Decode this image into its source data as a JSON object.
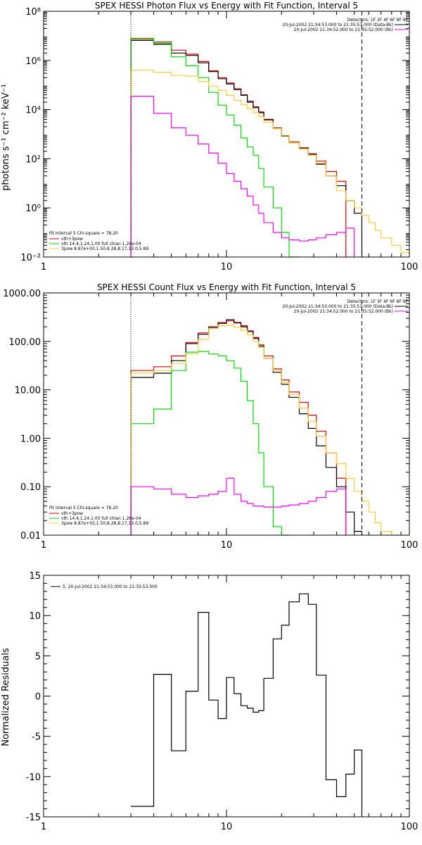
{
  "chart_data": [
    {
      "type": "line",
      "step": true,
      "title": "SPEX HESSI Photon Flux vs Energy with Fit Function, Interval 5",
      "xlabel": "",
      "ylabel": "photons s⁻¹ cm⁻² keV⁻¹",
      "xscale": "log",
      "yscale": "log",
      "xlim": [
        1,
        100
      ],
      "ylim": [
        0.01,
        100000000
      ],
      "x_ticks": [
        1,
        10,
        100
      ],
      "x_tick_labels": [
        "1",
        "10",
        "100"
      ],
      "y_ticks": [
        0.01,
        1,
        100,
        10000,
        1000000,
        100000000
      ],
      "y_tick_labels": [
        "10⁻²",
        "10⁰",
        "10²",
        "10⁴",
        "10⁶",
        "10⁸"
      ],
      "bin_edges": [
        3,
        4,
        5,
        6,
        7,
        8,
        9,
        10,
        11,
        12,
        13,
        14,
        15,
        16,
        18,
        20,
        22,
        25,
        28,
        31,
        35,
        40,
        45,
        50,
        55,
        60,
        65,
        70,
        80,
        90,
        100
      ],
      "series": [
        {
          "name": "vth+3pow",
          "color": "#e00000",
          "values": [
            7500000,
            5600000,
            2600000,
            1800000,
            900000,
            380000,
            200000,
            120000,
            70000,
            40000,
            22000,
            13000,
            8000,
            4000,
            1800,
            900,
            480,
            280,
            160,
            80,
            30,
            12,
            null,
            null,
            null,
            null,
            null,
            null,
            null,
            null
          ]
        },
        {
          "name": "data",
          "color": "#000000",
          "values": [
            6500000,
            4500000,
            2000000,
            1600000,
            800000,
            350000,
            180000,
            110000,
            65000,
            38000,
            20000,
            12000,
            7500,
            3800,
            1700,
            850,
            450,
            260,
            150,
            60,
            20,
            8,
            2,
            0.6,
            null,
            null,
            null,
            null,
            null,
            null
          ]
        },
        {
          "name": "vth 14.4,1.24,1.00  full chian 1.26e-04",
          "color": "#00dd00",
          "values": [
            8000000,
            5000000,
            1400000,
            600000,
            200000,
            50000,
            15000,
            6000,
            2300,
            700,
            300,
            140,
            40,
            7,
            1,
            0.1,
            0.01,
            null,
            null,
            null,
            null,
            null,
            null,
            null,
            null,
            null,
            null,
            null,
            null,
            null
          ]
        },
        {
          "name": "3pow  8.87e+03,1.50,8.28,8.17,13.0,5.89",
          "color": "#ffcc33",
          "values": [
            400000,
            330000,
            250000,
            230000,
            140000,
            90000,
            60000,
            38000,
            24000,
            16000,
            11000,
            7500,
            5200,
            3000,
            1700,
            900,
            450,
            250,
            140,
            65,
            20,
            5,
            2,
            1,
            0.5,
            0.25,
            0.12,
            0.06,
            0.03,
            0.015
          ]
        },
        {
          "name": "pink",
          "color": "#ff00ff",
          "values": [
            35000,
            7000,
            1800,
            900,
            400,
            170,
            65,
            25,
            12,
            6,
            3,
            1.3,
            0.6,
            0.25,
            0.1,
            0.06,
            0.05,
            0.045,
            0.05,
            0.06,
            0.08,
            0.1,
            0.15,
            null,
            null,
            null,
            null,
            null,
            null,
            null
          ]
        }
      ],
      "vlines": [
        {
          "x": 3,
          "style": "dotted"
        },
        {
          "x": 55,
          "style": "dashed"
        }
      ],
      "legend": {
        "title": "Detectors: 1F 3F 4F 6F 8F 9F",
        "entries": [
          {
            "text": "20-Jul-2002 21:34:53.000 to 21:35:53.000 (Data-Bk)",
            "color": "#000000"
          },
          {
            "text": "20-Jul-2002 21:34:52.000 to 21:35:52.000 (Bk)",
            "color": "#ff00ff"
          }
        ]
      },
      "fit_legend": {
        "title": "Fit Interval 5    Chi-square = 78.20",
        "entries": [
          {
            "text": "vth+3pow",
            "color": "#e00000"
          },
          {
            "text": "vth 14.4,1.24,1.00  full chian 1.26e-04",
            "color": "#00dd00"
          },
          {
            "text": "3pow  8.87e+03,1.50,8.28,8.17,13.0,5.89",
            "color": "#ffcc33"
          }
        ]
      }
    },
    {
      "type": "line",
      "step": true,
      "title": "SPEX HESSI Count Flux vs Energy with Fit Function, Interval 5",
      "xlabel": "",
      "ylabel": "",
      "xscale": "log",
      "yscale": "log",
      "xlim": [
        1,
        100
      ],
      "ylim": [
        0.01,
        1000
      ],
      "x_ticks": [
        1,
        10,
        100
      ],
      "x_tick_labels": [
        "1",
        "10",
        "100"
      ],
      "y_ticks": [
        0.01,
        0.1,
        1,
        10,
        100,
        1000
      ],
      "y_tick_labels": [
        "0.01",
        "0.10",
        "1.00",
        "10.00",
        "100.00",
        "1000.00"
      ],
      "bin_edges": [
        3,
        4,
        5,
        6,
        7,
        8,
        9,
        10,
        11,
        12,
        13,
        14,
        15,
        16,
        18,
        20,
        22,
        25,
        28,
        31,
        35,
        40,
        45,
        50,
        55,
        60,
        65,
        70,
        80,
        90,
        100
      ],
      "series": [
        {
          "name": "vth+3pow",
          "color": "#e00000",
          "values": [
            25,
            30,
            50,
            95,
            150,
            200,
            245,
            265,
            240,
            210,
            165,
            120,
            85,
            50,
            27,
            16,
            9,
            5.5,
            3.0,
            1.4,
            0.5,
            0.15,
            null,
            null,
            null,
            null,
            null,
            null,
            null,
            null
          ]
        },
        {
          "name": "data",
          "color": "#000000",
          "values": [
            18,
            22,
            40,
            90,
            140,
            195,
            235,
            280,
            245,
            200,
            160,
            115,
            80,
            45,
            23,
            13,
            7,
            3.2,
            1.6,
            0.7,
            0.25,
            0.1,
            0.03,
            0.012,
            null,
            null,
            null,
            null,
            null,
            null
          ]
        },
        {
          "name": "vth 14.4,1.24,1.00  full chian 1.26e-04",
          "color": "#00dd00",
          "values": [
            2.0,
            4.0,
            25,
            60,
            62,
            55,
            50,
            40,
            28,
            15,
            6,
            2.0,
            0.5,
            0.1,
            0.015,
            0.005,
            null,
            null,
            null,
            null,
            null,
            null,
            null,
            null,
            null,
            null,
            null,
            null,
            null,
            null
          ]
        },
        {
          "name": "3pow  8.87e+03,1.50,8.28,8.17,13.0,5.89",
          "color": "#ffcc33",
          "values": [
            22,
            25,
            35,
            55,
            110,
            185,
            210,
            215,
            195,
            170,
            135,
            100,
            75,
            45,
            25,
            14,
            8,
            4.2,
            2.2,
            1.1,
            0.5,
            0.3,
            0.15,
            0.08,
            0.05,
            0.03,
            0.018,
            0.012,
            0.01,
            0.008
          ]
        },
        {
          "name": "pink",
          "color": "#ff00ff",
          "values": [
            0.1,
            0.09,
            0.07,
            0.06,
            0.065,
            0.07,
            0.08,
            0.15,
            0.07,
            0.05,
            0.045,
            0.04,
            0.04,
            0.038,
            0.038,
            0.04,
            0.042,
            0.045,
            0.05,
            0.06,
            0.08,
            0.09,
            null,
            null,
            null,
            null,
            null,
            null,
            null,
            null
          ]
        }
      ],
      "vlines": [
        {
          "x": 3,
          "style": "dotted"
        },
        {
          "x": 55,
          "style": "dashed"
        }
      ],
      "legend": {
        "title": "Detectors: 1F 3F 4F 6F 8F 9F",
        "entries": [
          {
            "text": "20-Jul-2002 21:34:53.000 to 21:35:53.000 (Data-Bk)",
            "color": "#000000"
          },
          {
            "text": "20-Jul-2002 21:34:52.000 to 21:35:52.000 (Bk)",
            "color": "#ff00ff"
          }
        ]
      },
      "fit_legend": {
        "title": "Fit Interval 5    Chi-square = 78.20",
        "entries": [
          {
            "text": "vth+3pow",
            "color": "#e00000"
          },
          {
            "text": "vth 14.4,1.24,1.00  full chian 1.26e-04",
            "color": "#00dd00"
          },
          {
            "text": "3pow  8.87e+03,1.50,8.28,8.17,13.0,5.89",
            "color": "#ffcc33"
          }
        ]
      }
    },
    {
      "type": "line",
      "step": true,
      "title": "",
      "xlabel": "",
      "ylabel": "Normalized Residuals",
      "xscale": "log",
      "yscale": "linear",
      "xlim": [
        1,
        100
      ],
      "ylim": [
        -15,
        15
      ],
      "x_ticks": [
        1,
        10,
        100
      ],
      "x_tick_labels": [
        "1",
        "10",
        "100"
      ],
      "y_ticks": [
        -15,
        -10,
        -5,
        0,
        5,
        10,
        15
      ],
      "y_tick_labels": [
        "-15",
        "-10",
        "-5",
        "0",
        "5",
        "10",
        "15"
      ],
      "bin_edges": [
        3,
        4,
        5,
        6,
        7,
        8,
        9,
        10,
        11,
        12,
        13,
        14,
        15,
        16,
        18,
        20,
        22,
        25,
        28,
        31,
        35,
        40,
        45,
        50,
        55
      ],
      "series": [
        {
          "name": "5, 20-Jul-2002 21:34:53.000 to 21:35:53.000",
          "color": "#000000",
          "values": [
            -13.7,
            2.7,
            -6.8,
            0.6,
            10.4,
            -0.5,
            -2.8,
            2.3,
            0.3,
            -1.2,
            -1.5,
            -2.0,
            -1.8,
            2.2,
            7.1,
            8.8,
            11.7,
            12.7,
            11.4,
            2.6,
            -10.4,
            -12.5,
            -9.7,
            -6.7
          ]
        }
      ],
      "legend": {
        "entries": [
          {
            "text": "5, 20-Jul-2002 21:34:53.000 to 21:35:53.000",
            "color": "#000000"
          }
        ]
      }
    }
  ]
}
